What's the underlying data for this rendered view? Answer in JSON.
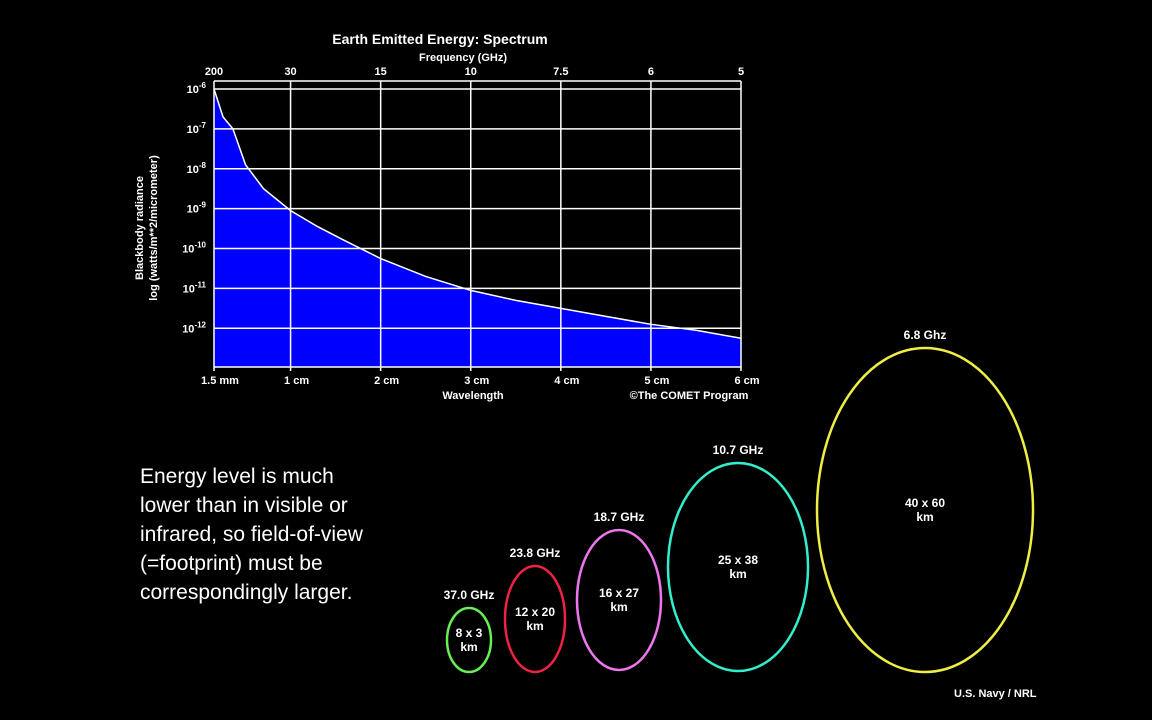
{
  "chart_data": {
    "type": "area",
    "title": "Earth Emitted Energy: Spectrum",
    "top_axis_label": "Frequency (GHz)",
    "top_ticks": [
      {
        "wavelength_cm": 0.15,
        "label": "200"
      },
      {
        "wavelength_cm": 1,
        "label": "30"
      },
      {
        "wavelength_cm": 2,
        "label": "15"
      },
      {
        "wavelength_cm": 3,
        "label": "10"
      },
      {
        "wavelength_cm": 4,
        "label": "7.5"
      },
      {
        "wavelength_cm": 5,
        "label": "6"
      },
      {
        "wavelength_cm": 6,
        "label": "5"
      }
    ],
    "xlabel": "Wavelength",
    "x_ticks": [
      {
        "value": 0.15,
        "label": "1.5  mm"
      },
      {
        "value": 1,
        "label": "1 cm"
      },
      {
        "value": 2,
        "label": "2 cm"
      },
      {
        "value": 3,
        "label": "3 cm"
      },
      {
        "value": 4,
        "label": "4 cm"
      },
      {
        "value": 5,
        "label": "5 cm"
      },
      {
        "value": 6,
        "label": "6 cm"
      }
    ],
    "xlim": [
      0.15,
      6
    ],
    "ylabel_line1": "Blackbody radiance",
    "ylabel_line2": "log (watts/m**2/micrometer)",
    "y_ticks": [
      -6,
      -7,
      -8,
      -9,
      -10,
      -11,
      -12
    ],
    "y_tick_base": "10",
    "ylim": [
      -12.97,
      -5.8
    ],
    "grid": true,
    "series": [
      {
        "name": "Blackbody radiance",
        "color": "#0000ff",
        "x": [
          0.15,
          0.25,
          0.36,
          0.5,
          0.7,
          1.0,
          1.3,
          1.6,
          2.0,
          2.5,
          3.0,
          3.5,
          4.0,
          4.5,
          5.0,
          5.5,
          6.0
        ],
        "y_log10": [
          -6.0,
          -6.7,
          -7.0,
          -7.9,
          -8.5,
          -9.05,
          -9.45,
          -9.8,
          -10.25,
          -10.7,
          -11.05,
          -11.3,
          -11.5,
          -11.7,
          -11.9,
          -12.05,
          -12.25
        ]
      }
    ],
    "credit": "©The COMET Program"
  },
  "description": "Energy level is much lower than in visible or infrared, so field-of-view (=footprint) must be correspondingly larger.",
  "footprints": [
    {
      "freq": "37.0 GHz",
      "size": "8 x 3",
      "unit": "km",
      "color": "#66ee55"
    },
    {
      "freq": "23.8 GHz",
      "size": "12 x 20",
      "unit": "km",
      "color": "#ee2244"
    },
    {
      "freq": "18.7 GHz",
      "size": "16 x 27",
      "unit": "km",
      "color": "#ee77ee"
    },
    {
      "freq": "10.7 GHz",
      "size": "25 x 38",
      "unit": "km",
      "color": "#33eecc"
    },
    {
      "freq": "6.8 Ghz",
      "size": "40 x 60",
      "unit": "km",
      "color": "#eeee44"
    }
  ],
  "source_credit": "U.S. Navy / NRL"
}
